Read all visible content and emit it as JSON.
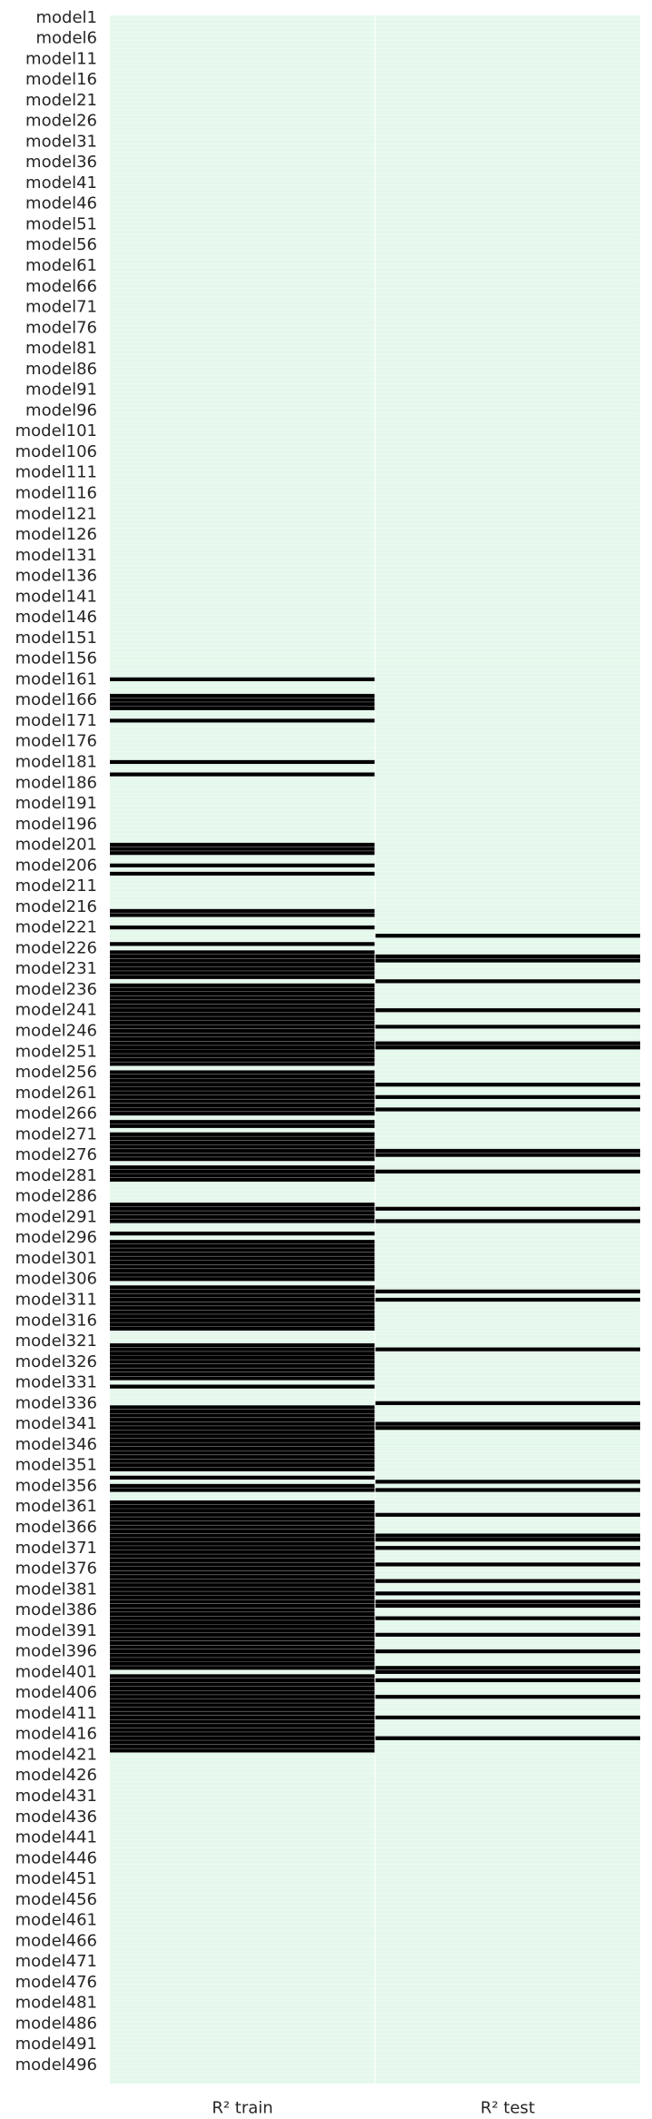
{
  "chart_data": {
    "type": "heatmap",
    "title": "",
    "xlabel": "",
    "ylabel": "",
    "columns": [
      "R² train",
      "R² test"
    ],
    "row_prefix": "model",
    "row_count": 500,
    "row_tick_step": 5,
    "color_low": "#e5f8ec",
    "color_high": "#000000",
    "values_note": "0 = light (low), 1 = black (high)",
    "train_high_rows": [
      161,
      165,
      166,
      167,
      168,
      171,
      181,
      184,
      201,
      202,
      203,
      206,
      208,
      217,
      218,
      221,
      225,
      227,
      228,
      229,
      230,
      231,
      232,
      233,
      235,
      236,
      237,
      238,
      239,
      240,
      241,
      242,
      243,
      244,
      245,
      246,
      247,
      248,
      249,
      250,
      251,
      252,
      253,
      254,
      256,
      257,
      258,
      259,
      260,
      261,
      262,
      263,
      264,
      265,
      266,
      268,
      269,
      271,
      272,
      273,
      274,
      275,
      276,
      277,
      279,
      280,
      281,
      282,
      288,
      289,
      290,
      291,
      292,
      295,
      297,
      298,
      299,
      300,
      301,
      302,
      303,
      304,
      305,
      306,
      308,
      309,
      310,
      311,
      312,
      313,
      314,
      315,
      316,
      317,
      318,
      322,
      323,
      324,
      325,
      326,
      327,
      328,
      329,
      330,
      332,
      337,
      338,
      339,
      340,
      341,
      342,
      343,
      344,
      345,
      346,
      347,
      348,
      349,
      350,
      351,
      352,
      354,
      356,
      357,
      360,
      361,
      362,
      363,
      364,
      365,
      366,
      367,
      368,
      369,
      370,
      371,
      372,
      373,
      374,
      375,
      376,
      377,
      378,
      379,
      380,
      381,
      382,
      383,
      384,
      385,
      386,
      387,
      388,
      389,
      390,
      391,
      392,
      393,
      394,
      395,
      396,
      397,
      398,
      399,
      400,
      402,
      403,
      404,
      405,
      406,
      407,
      408,
      409,
      410,
      411,
      412,
      413,
      414,
      415,
      416,
      417,
      418,
      419,
      420
    ],
    "test_high_rows": [
      223,
      228,
      229,
      234,
      241,
      245,
      249,
      250,
      259,
      262,
      265,
      275,
      276,
      280,
      289,
      292,
      309,
      311,
      323,
      336,
      341,
      342,
      355,
      357,
      363,
      368,
      369,
      371,
      375,
      379,
      382,
      384,
      385,
      388,
      392,
      396,
      400,
      401,
      403,
      407,
      412,
      417
    ]
  }
}
